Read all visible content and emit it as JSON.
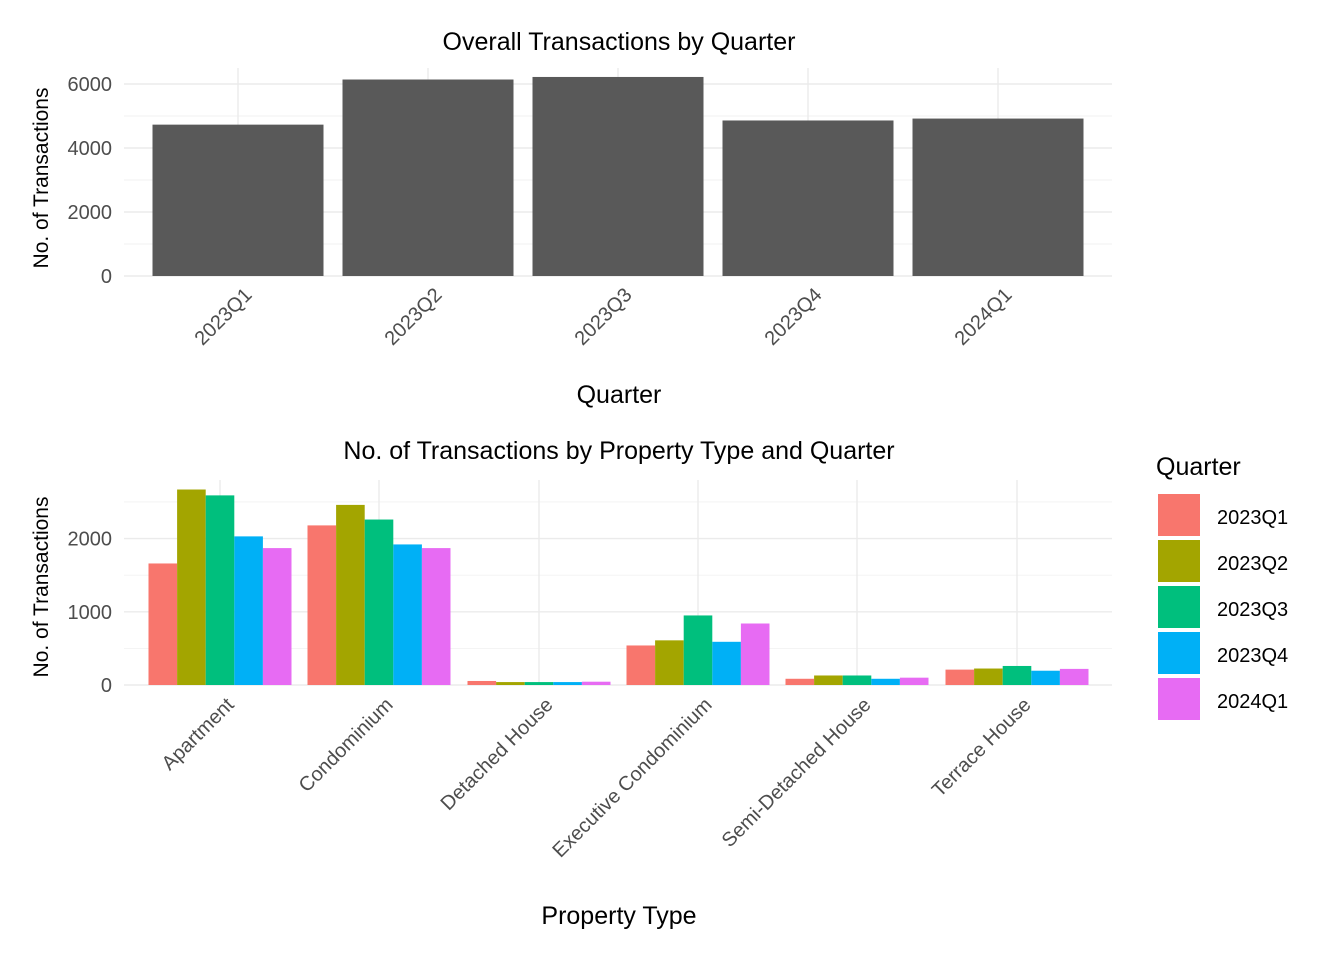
{
  "chart_data": [
    {
      "type": "bar",
      "title": "Overall Transactions by Quarter",
      "xlabel": "Quarter",
      "ylabel": "No. of Transactions",
      "categories": [
        "2023Q1",
        "2023Q2",
        "2023Q3",
        "2023Q4",
        "2024Q1"
      ],
      "values": [
        4730,
        6140,
        6220,
        4860,
        4920
      ],
      "ylim": [
        0,
        6500
      ],
      "yticks": [
        "0",
        "2000",
        "4000",
        "6000"
      ],
      "bar_color": "#595959",
      "grid": true
    },
    {
      "type": "bar",
      "title": "No. of Transactions by Property Type and Quarter",
      "xlabel": "Property Type",
      "ylabel": "No. of Transactions",
      "categories": [
        "Apartment",
        "Condominium",
        "Detached House",
        "Executive Condominium",
        "Semi-Detached House",
        "Terrace House"
      ],
      "series": [
        {
          "name": "2023Q1",
          "color": "#F8766D",
          "values": [
            1660,
            2180,
            55,
            540,
            85,
            210
          ]
        },
        {
          "name": "2023Q2",
          "color": "#A3A500",
          "values": [
            2670,
            2460,
            40,
            610,
            130,
            225
          ]
        },
        {
          "name": "2023Q3",
          "color": "#00BF7D",
          "values": [
            2590,
            2260,
            40,
            950,
            130,
            260
          ]
        },
        {
          "name": "2023Q4",
          "color": "#00B0F6",
          "values": [
            2030,
            1920,
            40,
            590,
            85,
            195
          ]
        },
        {
          "name": "2024Q1",
          "color": "#E76BF3",
          "values": [
            1870,
            1870,
            45,
            840,
            100,
            220
          ]
        }
      ],
      "ylim": [
        0,
        2800
      ],
      "yticks": [
        "0",
        "1000",
        "2000"
      ],
      "legend": {
        "title": "Quarter",
        "placement": "right"
      },
      "grid": true
    }
  ]
}
